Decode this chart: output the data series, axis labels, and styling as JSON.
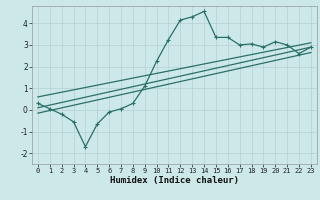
{
  "title": "",
  "xlabel": "Humidex (Indice chaleur)",
  "ylabel": "",
  "bg_color": "#cde8e8",
  "grid_color": "#b8d4d4",
  "line_color": "#2a7068",
  "xlim": [
    -0.5,
    23.5
  ],
  "ylim": [
    -2.5,
    4.8
  ],
  "xticks": [
    0,
    1,
    2,
    3,
    4,
    5,
    6,
    7,
    8,
    9,
    10,
    11,
    12,
    13,
    14,
    15,
    16,
    17,
    18,
    19,
    20,
    21,
    22,
    23
  ],
  "yticks": [
    -2,
    -1,
    0,
    1,
    2,
    3,
    4
  ],
  "line1_x": [
    0,
    1,
    2,
    3,
    4,
    5,
    6,
    7,
    8,
    9,
    10,
    11,
    12,
    13,
    14,
    15,
    16,
    17,
    18,
    19,
    20,
    21,
    22,
    23
  ],
  "line1_y": [
    0.3,
    0.05,
    -0.2,
    -0.55,
    -1.7,
    -0.65,
    -0.1,
    0.05,
    0.3,
    1.1,
    2.25,
    3.25,
    4.15,
    4.3,
    4.55,
    3.35,
    3.35,
    3.0,
    3.05,
    2.9,
    3.15,
    3.0,
    2.6,
    2.9
  ],
  "line2_x": [
    0,
    23
  ],
  "line2_y": [
    0.1,
    2.9
  ],
  "line3_x": [
    0,
    23
  ],
  "line3_y": [
    -0.15,
    2.65
  ],
  "line4_x": [
    0,
    23
  ],
  "line4_y": [
    0.6,
    3.1
  ],
  "tick_fontsize": 5.5,
  "xlabel_fontsize": 6.5,
  "spine_color": "#999999"
}
